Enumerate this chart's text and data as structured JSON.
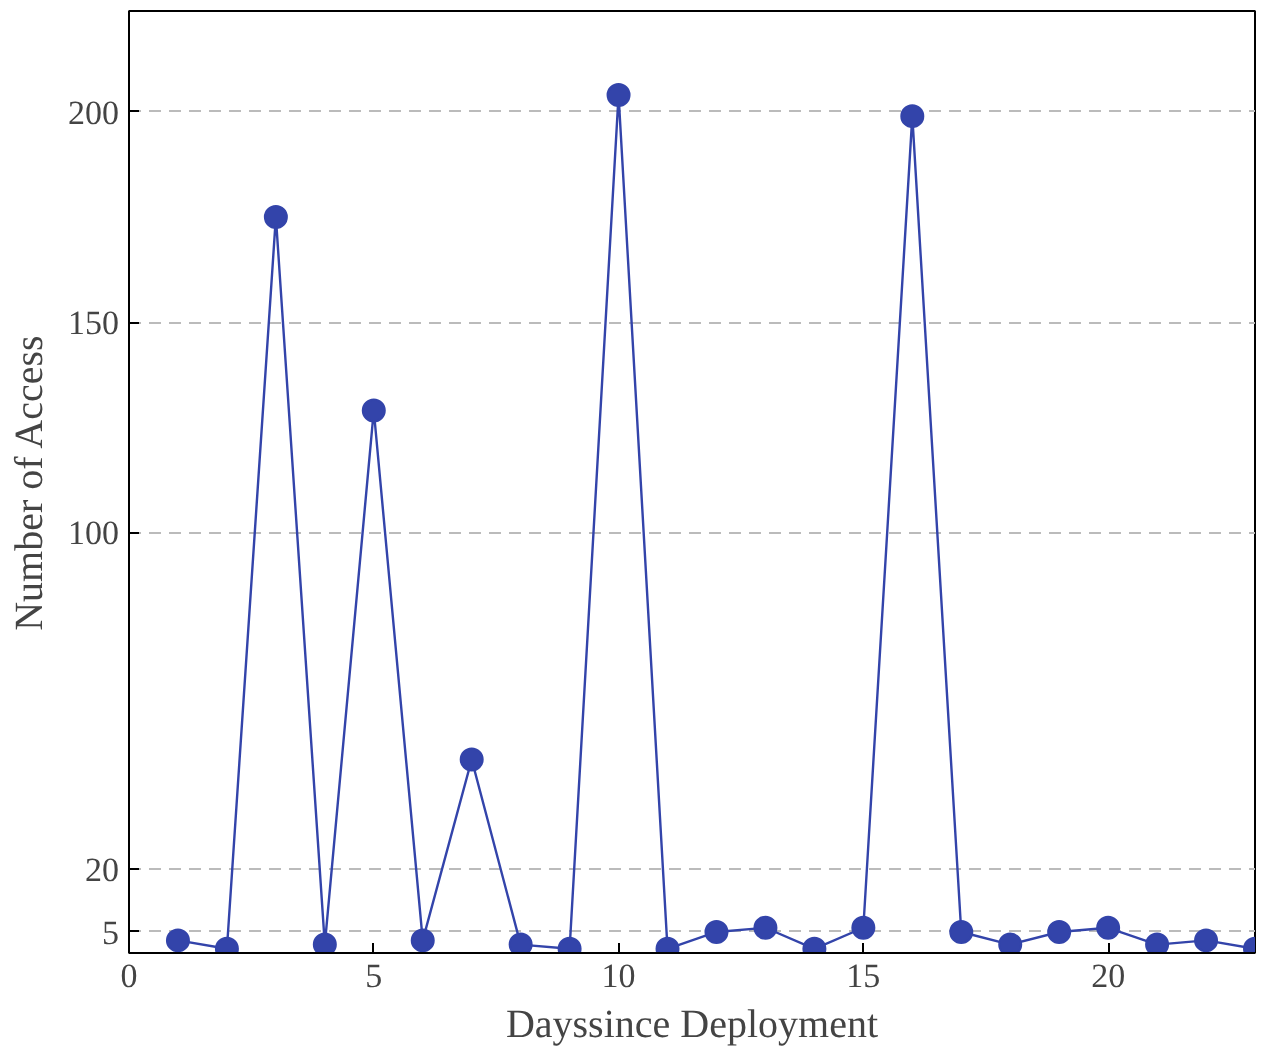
{
  "chart_data": {
    "type": "line",
    "xlabel": "Dayssince Deployment",
    "ylabel": "Number of Access",
    "x": [
      1,
      2,
      3,
      4,
      5,
      6,
      7,
      8,
      9,
      10,
      11,
      12,
      13,
      14,
      15,
      16,
      17,
      18,
      19,
      20,
      21,
      22,
      23
    ],
    "series": [
      {
        "color": "#3344aa",
        "values": [
          3,
          1,
          175,
          2,
          129,
          3,
          46,
          2,
          1,
          204,
          1,
          5,
          6,
          1,
          6,
          199,
          5,
          2,
          5,
          6,
          2,
          3,
          1
        ]
      }
    ],
    "xlim": [
      0,
      23
    ],
    "ylim": [
      0,
      224
    ],
    "xticks": [
      0,
      5,
      10,
      15,
      20
    ],
    "yticks": [
      5,
      20,
      100,
      150,
      200
    ],
    "grid": "y",
    "marker": "circle",
    "line_style": "solid"
  }
}
